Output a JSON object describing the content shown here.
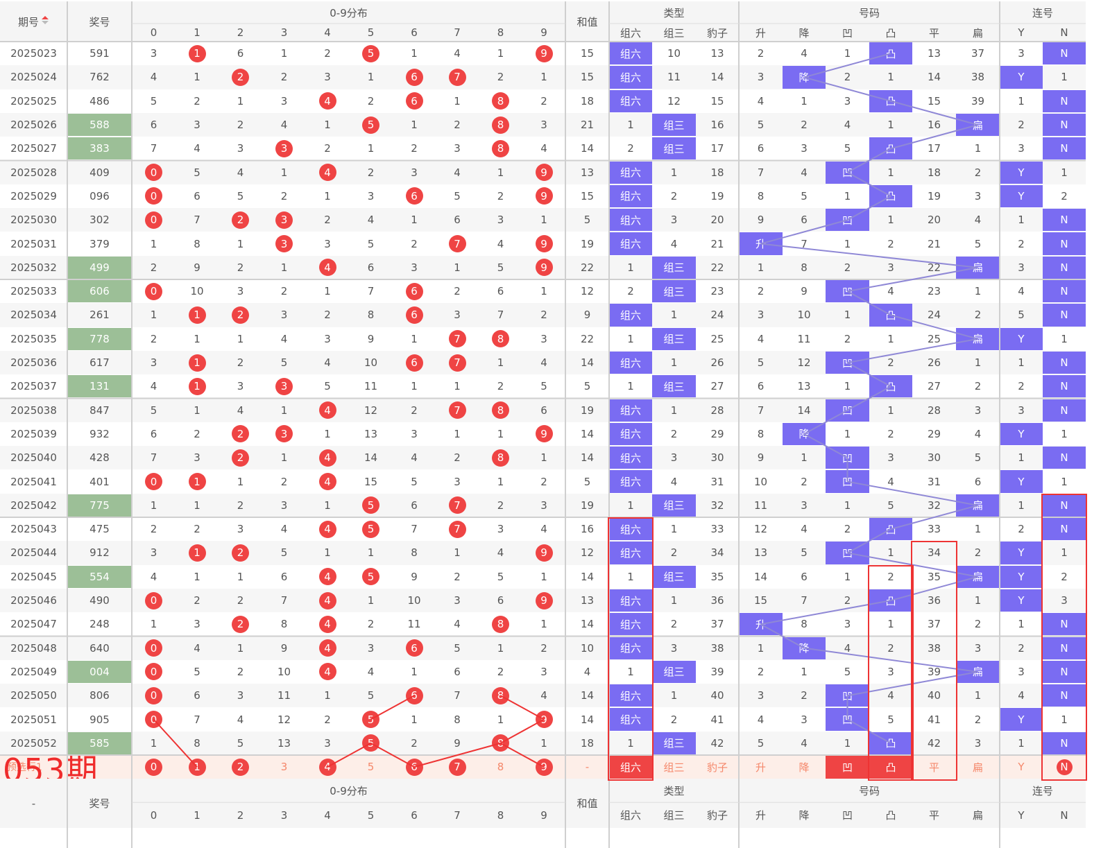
{
  "header": {
    "period_label": "期号",
    "sort_icon": "sort-arrows-icon",
    "prize_label": "奖号",
    "dist_label": "0-9分布",
    "digits": [
      "0",
      "1",
      "2",
      "3",
      "4",
      "5",
      "6",
      "7",
      "8",
      "9"
    ],
    "sum_label": "和值",
    "type_label": "类型",
    "type_cols": [
      "组六",
      "组三",
      "豹子"
    ],
    "code_label": "号码",
    "code_cols": [
      "升",
      "降",
      "凹",
      "凸",
      "平",
      "扁"
    ],
    "lian_label": "连号",
    "lian_cols": [
      "Y",
      "N"
    ]
  },
  "colors": {
    "purple": "#7a6cf2",
    "green": "#9cbf97",
    "red": "#ef4444",
    "pred_bg": "#fdeee8"
  },
  "rows": [
    {
      "p": "2025023",
      "n": "591",
      "g": 0,
      "d": [
        "3",
        "1",
        "6",
        "1",
        "2",
        "5",
        "1",
        "4",
        "1",
        "9"
      ],
      "h": [
        1,
        5,
        9
      ],
      "s": "15",
      "t": [
        "组六",
        "10",
        "13"
      ],
      "ti": 0,
      "c": [
        "2",
        "4",
        "1",
        "凸",
        "13",
        "37"
      ],
      "ci": 3,
      "l": [
        "3",
        "N"
      ],
      "li": 1
    },
    {
      "p": "2025024",
      "n": "762",
      "g": 0,
      "d": [
        "4",
        "1",
        "2",
        "2",
        "3",
        "1",
        "6",
        "7",
        "2",
        "1"
      ],
      "h": [
        2,
        6,
        7
      ],
      "s": "15",
      "t": [
        "组六",
        "11",
        "14"
      ],
      "ti": 0,
      "c": [
        "3",
        "降",
        "2",
        "1",
        "14",
        "38"
      ],
      "ci": 1,
      "l": [
        "Y",
        "1"
      ],
      "li": 0
    },
    {
      "p": "2025025",
      "n": "486",
      "g": 0,
      "d": [
        "5",
        "2",
        "1",
        "3",
        "4",
        "2",
        "6",
        "1",
        "8",
        "2"
      ],
      "h": [
        4,
        6,
        8
      ],
      "s": "18",
      "t": [
        "组六",
        "12",
        "15"
      ],
      "ti": 0,
      "c": [
        "4",
        "1",
        "3",
        "凸",
        "15",
        "39"
      ],
      "ci": 3,
      "l": [
        "1",
        "N"
      ],
      "li": 1
    },
    {
      "p": "2025026",
      "n": "588",
      "g": 1,
      "d": [
        "6",
        "3",
        "2",
        "4",
        "1",
        "5",
        "1",
        "2",
        "8",
        "3"
      ],
      "h": [
        5,
        8
      ],
      "s": "21",
      "t": [
        "1",
        "组三",
        "16"
      ],
      "ti": 1,
      "c": [
        "5",
        "2",
        "4",
        "1",
        "16",
        "扁"
      ],
      "ci": 5,
      "l": [
        "2",
        "N"
      ],
      "li": 1
    },
    {
      "p": "2025027",
      "n": "383",
      "g": 1,
      "d": [
        "7",
        "4",
        "3",
        "3",
        "2",
        "1",
        "2",
        "3",
        "8",
        "4"
      ],
      "h": [
        3,
        8
      ],
      "s": "14",
      "t": [
        "2",
        "组三",
        "17"
      ],
      "ti": 1,
      "c": [
        "6",
        "3",
        "5",
        "凸",
        "17",
        "1"
      ],
      "ci": 3,
      "l": [
        "3",
        "N"
      ],
      "li": 1
    },
    {
      "p": "2025028",
      "n": "409",
      "g": 0,
      "d": [
        "0",
        "5",
        "4",
        "1",
        "4",
        "2",
        "3",
        "4",
        "1",
        "9"
      ],
      "h": [
        0,
        4,
        9
      ],
      "s": "13",
      "t": [
        "组六",
        "1",
        "18"
      ],
      "ti": 0,
      "c": [
        "7",
        "4",
        "凹",
        "1",
        "18",
        "2"
      ],
      "ci": 2,
      "l": [
        "Y",
        "1"
      ],
      "li": 0
    },
    {
      "p": "2025029",
      "n": "096",
      "g": 0,
      "d": [
        "0",
        "6",
        "5",
        "2",
        "1",
        "3",
        "6",
        "5",
        "2",
        "9"
      ],
      "h": [
        0,
        6,
        9
      ],
      "s": "15",
      "t": [
        "组六",
        "2",
        "19"
      ],
      "ti": 0,
      "c": [
        "8",
        "5",
        "1",
        "凸",
        "19",
        "3"
      ],
      "ci": 3,
      "l": [
        "Y",
        "2"
      ],
      "li": 0
    },
    {
      "p": "2025030",
      "n": "302",
      "g": 0,
      "d": [
        "0",
        "7",
        "2",
        "3",
        "2",
        "4",
        "1",
        "6",
        "3",
        "1"
      ],
      "h": [
        0,
        2,
        3
      ],
      "s": "5",
      "t": [
        "组六",
        "3",
        "20"
      ],
      "ti": 0,
      "c": [
        "9",
        "6",
        "凹",
        "1",
        "20",
        "4"
      ],
      "ci": 2,
      "l": [
        "1",
        "N"
      ],
      "li": 1
    },
    {
      "p": "2025031",
      "n": "379",
      "g": 0,
      "d": [
        "1",
        "8",
        "1",
        "3",
        "3",
        "5",
        "2",
        "7",
        "4",
        "9"
      ],
      "h": [
        3,
        7,
        9
      ],
      "s": "19",
      "t": [
        "组六",
        "4",
        "21"
      ],
      "ti": 0,
      "c": [
        "升",
        "7",
        "1",
        "2",
        "21",
        "5"
      ],
      "ci": 0,
      "l": [
        "2",
        "N"
      ],
      "li": 1
    },
    {
      "p": "2025032",
      "n": "499",
      "g": 1,
      "d": [
        "2",
        "9",
        "2",
        "1",
        "4",
        "6",
        "3",
        "1",
        "5",
        "9"
      ],
      "h": [
        4,
        9
      ],
      "s": "22",
      "t": [
        "1",
        "组三",
        "22"
      ],
      "ti": 1,
      "c": [
        "1",
        "8",
        "2",
        "3",
        "22",
        "扁"
      ],
      "ci": 5,
      "l": [
        "3",
        "N"
      ],
      "li": 1
    },
    {
      "p": "2025033",
      "n": "606",
      "g": 1,
      "d": [
        "0",
        "10",
        "3",
        "2",
        "1",
        "7",
        "6",
        "2",
        "6",
        "1"
      ],
      "h": [
        0,
        6
      ],
      "s": "12",
      "t": [
        "2",
        "组三",
        "23"
      ],
      "ti": 1,
      "c": [
        "2",
        "9",
        "凹",
        "4",
        "23",
        "1"
      ],
      "ci": 2,
      "l": [
        "4",
        "N"
      ],
      "li": 1
    },
    {
      "p": "2025034",
      "n": "261",
      "g": 0,
      "d": [
        "1",
        "1",
        "2",
        "3",
        "2",
        "8",
        "6",
        "3",
        "7",
        "2"
      ],
      "h": [
        1,
        2,
        6
      ],
      "s": "9",
      "t": [
        "组六",
        "1",
        "24"
      ],
      "ti": 0,
      "c": [
        "3",
        "10",
        "1",
        "凸",
        "24",
        "2"
      ],
      "ci": 3,
      "l": [
        "5",
        "N"
      ],
      "li": 1
    },
    {
      "p": "2025035",
      "n": "778",
      "g": 1,
      "d": [
        "2",
        "1",
        "1",
        "4",
        "3",
        "9",
        "1",
        "7",
        "8",
        "3"
      ],
      "h": [
        7,
        8
      ],
      "s": "22",
      "t": [
        "1",
        "组三",
        "25"
      ],
      "ti": 1,
      "c": [
        "4",
        "11",
        "2",
        "1",
        "25",
        "扁"
      ],
      "ci": 5,
      "l": [
        "Y",
        "1"
      ],
      "li": 0
    },
    {
      "p": "2025036",
      "n": "617",
      "g": 0,
      "d": [
        "3",
        "1",
        "2",
        "5",
        "4",
        "10",
        "6",
        "7",
        "1",
        "4"
      ],
      "h": [
        1,
        6,
        7
      ],
      "s": "14",
      "t": [
        "组六",
        "1",
        "26"
      ],
      "ti": 0,
      "c": [
        "5",
        "12",
        "凹",
        "2",
        "26",
        "1"
      ],
      "ci": 2,
      "l": [
        "1",
        "N"
      ],
      "li": 1
    },
    {
      "p": "2025037",
      "n": "131",
      "g": 1,
      "d": [
        "4",
        "1",
        "3",
        "3",
        "5",
        "11",
        "1",
        "1",
        "2",
        "5"
      ],
      "h": [
        1,
        3
      ],
      "s": "5",
      "t": [
        "1",
        "组三",
        "27"
      ],
      "ti": 1,
      "c": [
        "6",
        "13",
        "1",
        "凸",
        "27",
        "2"
      ],
      "ci": 3,
      "l": [
        "2",
        "N"
      ],
      "li": 1
    },
    {
      "p": "2025038",
      "n": "847",
      "g": 0,
      "d": [
        "5",
        "1",
        "4",
        "1",
        "4",
        "12",
        "2",
        "7",
        "8",
        "6"
      ],
      "h": [
        4,
        7,
        8
      ],
      "s": "19",
      "t": [
        "组六",
        "1",
        "28"
      ],
      "ti": 0,
      "c": [
        "7",
        "14",
        "凹",
        "1",
        "28",
        "3"
      ],
      "ci": 2,
      "l": [
        "3",
        "N"
      ],
      "li": 1
    },
    {
      "p": "2025039",
      "n": "932",
      "g": 0,
      "d": [
        "6",
        "2",
        "2",
        "3",
        "1",
        "13",
        "3",
        "1",
        "1",
        "9"
      ],
      "h": [
        2,
        3,
        9
      ],
      "s": "14",
      "t": [
        "组六",
        "2",
        "29"
      ],
      "ti": 0,
      "c": [
        "8",
        "降",
        "1",
        "2",
        "29",
        "4"
      ],
      "ci": 1,
      "l": [
        "Y",
        "1"
      ],
      "li": 0
    },
    {
      "p": "2025040",
      "n": "428",
      "g": 0,
      "d": [
        "7",
        "3",
        "2",
        "1",
        "4",
        "14",
        "4",
        "2",
        "8",
        "1"
      ],
      "h": [
        2,
        4,
        8
      ],
      "s": "14",
      "t": [
        "组六",
        "3",
        "30"
      ],
      "ti": 0,
      "c": [
        "9",
        "1",
        "凹",
        "3",
        "30",
        "5"
      ],
      "ci": 2,
      "l": [
        "1",
        "N"
      ],
      "li": 1
    },
    {
      "p": "2025041",
      "n": "401",
      "g": 0,
      "d": [
        "0",
        "1",
        "1",
        "2",
        "4",
        "15",
        "5",
        "3",
        "1",
        "2"
      ],
      "h": [
        0,
        1,
        4
      ],
      "s": "5",
      "t": [
        "组六",
        "4",
        "31"
      ],
      "ti": 0,
      "c": [
        "10",
        "2",
        "凹",
        "4",
        "31",
        "6"
      ],
      "ci": 2,
      "l": [
        "Y",
        "1"
      ],
      "li": 0
    },
    {
      "p": "2025042",
      "n": "775",
      "g": 1,
      "d": [
        "1",
        "1",
        "2",
        "3",
        "1",
        "5",
        "6",
        "7",
        "2",
        "3"
      ],
      "h": [
        5,
        7
      ],
      "s": "19",
      "t": [
        "1",
        "组三",
        "32"
      ],
      "ti": 1,
      "c": [
        "11",
        "3",
        "1",
        "5",
        "32",
        "扁"
      ],
      "ci": 5,
      "l": [
        "1",
        "N"
      ],
      "li": 1
    },
    {
      "p": "2025043",
      "n": "475",
      "g": 0,
      "d": [
        "2",
        "2",
        "3",
        "4",
        "4",
        "5",
        "7",
        "7",
        "3",
        "4"
      ],
      "h": [
        4,
        5,
        7
      ],
      "s": "16",
      "t": [
        "组六",
        "1",
        "33"
      ],
      "ti": 0,
      "c": [
        "12",
        "4",
        "2",
        "凸",
        "33",
        "1"
      ],
      "ci": 3,
      "l": [
        "2",
        "N"
      ],
      "li": 1
    },
    {
      "p": "2025044",
      "n": "912",
      "g": 0,
      "d": [
        "3",
        "1",
        "2",
        "5",
        "1",
        "1",
        "8",
        "1",
        "4",
        "9"
      ],
      "h": [
        1,
        2,
        9
      ],
      "s": "12",
      "t": [
        "组六",
        "2",
        "34"
      ],
      "ti": 0,
      "c": [
        "13",
        "5",
        "凹",
        "1",
        "34",
        "2"
      ],
      "ci": 2,
      "l": [
        "Y",
        "1"
      ],
      "li": 0
    },
    {
      "p": "2025045",
      "n": "554",
      "g": 1,
      "d": [
        "4",
        "1",
        "1",
        "6",
        "4",
        "5",
        "9",
        "2",
        "5",
        "1"
      ],
      "h": [
        4,
        5
      ],
      "s": "14",
      "t": [
        "1",
        "组三",
        "35"
      ],
      "ti": 1,
      "c": [
        "14",
        "6",
        "1",
        "2",
        "35",
        "扁"
      ],
      "ci": 5,
      "l": [
        "Y",
        "2"
      ],
      "li": 0
    },
    {
      "p": "2025046",
      "n": "490",
      "g": 0,
      "d": [
        "0",
        "2",
        "2",
        "7",
        "4",
        "1",
        "10",
        "3",
        "6",
        "9"
      ],
      "h": [
        0,
        4,
        9
      ],
      "s": "13",
      "t": [
        "组六",
        "1",
        "36"
      ],
      "ti": 0,
      "c": [
        "15",
        "7",
        "2",
        "凸",
        "36",
        "1"
      ],
      "ci": 3,
      "l": [
        "Y",
        "3"
      ],
      "li": 0
    },
    {
      "p": "2025047",
      "n": "248",
      "g": 0,
      "d": [
        "1",
        "3",
        "2",
        "8",
        "4",
        "2",
        "11",
        "4",
        "8",
        "1"
      ],
      "h": [
        2,
        4,
        8
      ],
      "s": "14",
      "t": [
        "组六",
        "2",
        "37"
      ],
      "ti": 0,
      "c": [
        "升",
        "8",
        "3",
        "1",
        "37",
        "2"
      ],
      "ci": 0,
      "l": [
        "1",
        "N"
      ],
      "li": 1
    },
    {
      "p": "2025048",
      "n": "640",
      "g": 0,
      "d": [
        "0",
        "4",
        "1",
        "9",
        "4",
        "3",
        "6",
        "5",
        "1",
        "2"
      ],
      "h": [
        0,
        4,
        6
      ],
      "s": "10",
      "t": [
        "组六",
        "3",
        "38"
      ],
      "ti": 0,
      "c": [
        "1",
        "降",
        "4",
        "2",
        "38",
        "3"
      ],
      "ci": 1,
      "l": [
        "2",
        "N"
      ],
      "li": 1
    },
    {
      "p": "2025049",
      "n": "004",
      "g": 1,
      "d": [
        "0",
        "5",
        "2",
        "10",
        "4",
        "4",
        "1",
        "6",
        "2",
        "3"
      ],
      "h": [
        0,
        4
      ],
      "s": "4",
      "t": [
        "1",
        "组三",
        "39"
      ],
      "ti": 1,
      "c": [
        "2",
        "1",
        "5",
        "3",
        "39",
        "扁"
      ],
      "ci": 5,
      "l": [
        "3",
        "N"
      ],
      "li": 1
    },
    {
      "p": "2025050",
      "n": "806",
      "g": 0,
      "d": [
        "0",
        "6",
        "3",
        "11",
        "1",
        "5",
        "6",
        "7",
        "8",
        "4"
      ],
      "h": [
        0,
        6,
        8
      ],
      "s": "14",
      "t": [
        "组六",
        "1",
        "40"
      ],
      "ti": 0,
      "c": [
        "3",
        "2",
        "凹",
        "4",
        "40",
        "1"
      ],
      "ci": 2,
      "l": [
        "4",
        "N"
      ],
      "li": 1
    },
    {
      "p": "2025051",
      "n": "905",
      "g": 0,
      "d": [
        "0",
        "7",
        "4",
        "12",
        "2",
        "5",
        "1",
        "8",
        "1",
        "9"
      ],
      "h": [
        0,
        5,
        9
      ],
      "s": "14",
      "t": [
        "组六",
        "2",
        "41"
      ],
      "ti": 0,
      "c": [
        "4",
        "3",
        "凹",
        "5",
        "41",
        "2"
      ],
      "ci": 2,
      "l": [
        "Y",
        "1"
      ],
      "li": 0
    },
    {
      "p": "2025052",
      "n": "585",
      "g": 1,
      "d": [
        "1",
        "8",
        "5",
        "13",
        "3",
        "5",
        "2",
        "9",
        "8",
        "1"
      ],
      "h": [
        5,
        8
      ],
      "s": "18",
      "t": [
        "1",
        "组三",
        "42"
      ],
      "ti": 1,
      "c": [
        "5",
        "4",
        "1",
        "凸",
        "42",
        "3"
      ],
      "ci": 3,
      "l": [
        "1",
        "N"
      ],
      "li": 1
    }
  ],
  "prediction": {
    "label": "预选行1",
    "overlay": "053期",
    "digits": [
      "0",
      "1",
      "2",
      "3",
      "4",
      "5",
      "6",
      "7",
      "8",
      "9"
    ],
    "hit": [
      0,
      1,
      2,
      4,
      6,
      7,
      9
    ],
    "sum": "-",
    "types": [
      "组六",
      "组三",
      "豹子"
    ],
    "codes": [
      "升",
      "降",
      "凹",
      "凸",
      "平",
      "扁"
    ],
    "lian": [
      "Y",
      "N"
    ]
  },
  "footer": {
    "period": "-"
  }
}
